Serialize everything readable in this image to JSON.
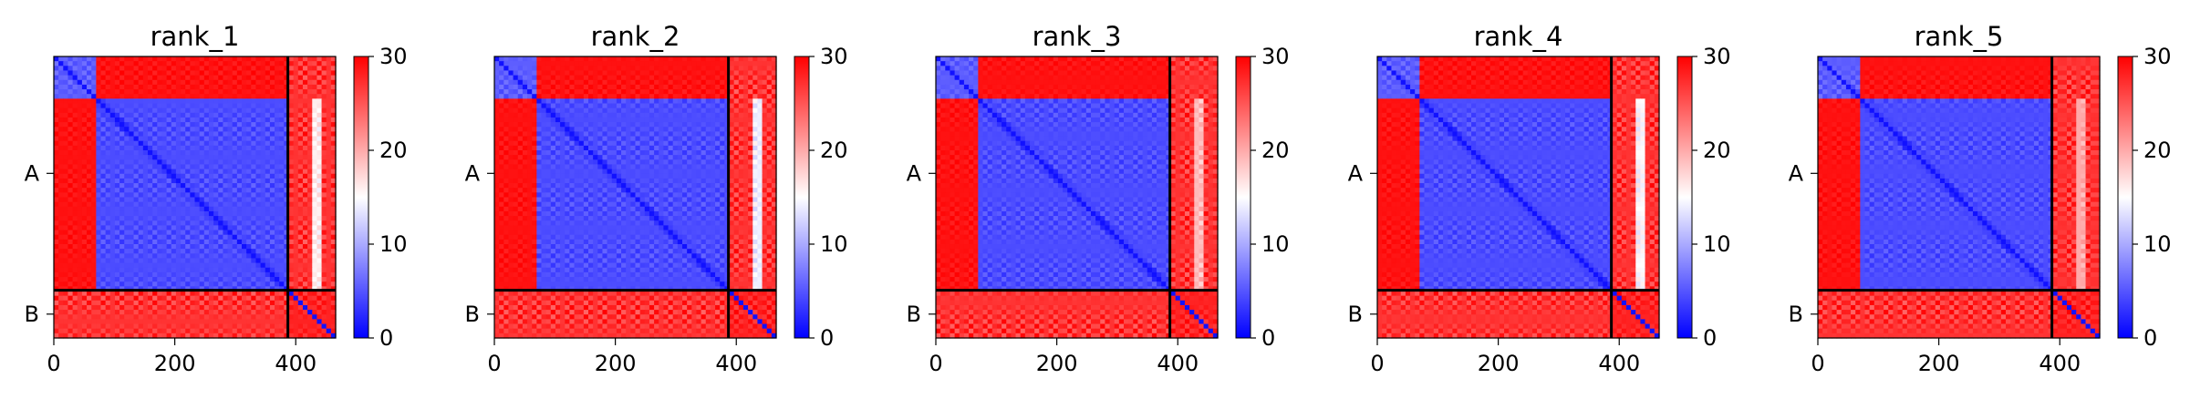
{
  "chart_data": {
    "type": "heatmap",
    "colormap": {
      "low": "#0000ff",
      "mid": "#ffffff",
      "high": "#ff0000",
      "vmin": 0,
      "vmax": 30
    },
    "colorbar_ticks": [
      "0",
      "10",
      "20",
      "30"
    ],
    "colorbar_values": [
      0,
      10,
      20,
      30
    ],
    "x_ticks": [
      "0",
      "200",
      "400"
    ],
    "x_tick_values": [
      0,
      200,
      400
    ],
    "xlim": [
      0,
      466
    ],
    "chains": [
      {
        "label": "A",
        "start": 0,
        "end": 387
      },
      {
        "label": "B",
        "start": 387,
        "end": 466
      }
    ],
    "panels": [
      {
        "title": "rank_1",
        "chainB_stripe_level": 14
      },
      {
        "title": "rank_2",
        "chainB_stripe_level": 12
      },
      {
        "title": "rank_3",
        "chainB_stripe_level": 17
      },
      {
        "title": "rank_4",
        "chainB_stripe_level": 13
      },
      {
        "title": "rank_5",
        "chainB_stripe_level": 18
      }
    ]
  }
}
